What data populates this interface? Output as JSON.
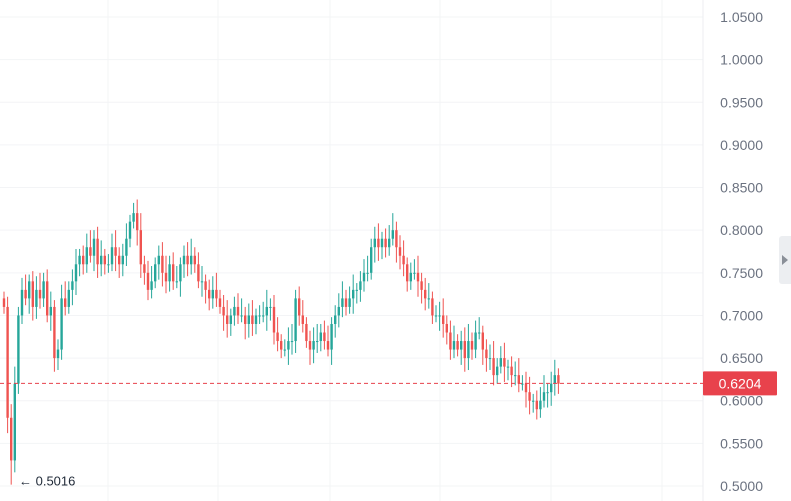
{
  "chart_data": {
    "type": "candlestick",
    "title": "",
    "xlabel": "",
    "ylabel": "",
    "ylim": [
      0.5,
      1.05
    ],
    "y_ticks": [
      "0.5000",
      "0.5500",
      "0.6000",
      "0.6500",
      "0.7000",
      "0.7500",
      "0.8000",
      "0.8500",
      "0.9000",
      "0.9500",
      "1.0000",
      "1.0500"
    ],
    "grid": true,
    "current_price": 0.6204,
    "current_price_label": "0.6204",
    "low_annotation": "← 0.5016",
    "low_value": 0.5016,
    "colors": {
      "up": "#26a69a",
      "down": "#ef5350",
      "price_tag": "#e8424c",
      "grid": "#f3f4f6",
      "axis_text": "#6b7280"
    },
    "close_path": [
      0.71,
      0.58,
      0.53,
      0.62,
      0.7,
      0.73,
      0.72,
      0.74,
      0.71,
      0.73,
      0.72,
      0.74,
      0.7,
      0.71,
      0.65,
      0.66,
      0.72,
      0.71,
      0.73,
      0.74,
      0.76,
      0.77,
      0.76,
      0.78,
      0.77,
      0.79,
      0.76,
      0.77,
      0.76,
      0.76,
      0.78,
      0.77,
      0.76,
      0.77,
      0.79,
      0.81,
      0.82,
      0.8,
      0.76,
      0.75,
      0.73,
      0.74,
      0.76,
      0.77,
      0.75,
      0.74,
      0.76,
      0.74,
      0.74,
      0.76,
      0.77,
      0.76,
      0.77,
      0.76,
      0.74,
      0.74,
      0.73,
      0.72,
      0.73,
      0.72,
      0.71,
      0.7,
      0.69,
      0.7,
      0.71,
      0.7,
      0.7,
      0.69,
      0.7,
      0.69,
      0.7,
      0.7,
      0.7,
      0.71,
      0.71,
      0.68,
      0.67,
      0.66,
      0.66,
      0.67,
      0.67,
      0.72,
      0.7,
      0.69,
      0.67,
      0.66,
      0.67,
      0.67,
      0.68,
      0.67,
      0.66,
      0.69,
      0.7,
      0.71,
      0.72,
      0.71,
      0.72,
      0.73,
      0.73,
      0.74,
      0.75,
      0.75,
      0.78,
      0.79,
      0.78,
      0.79,
      0.78,
      0.79,
      0.8,
      0.78,
      0.77,
      0.76,
      0.74,
      0.75,
      0.75,
      0.74,
      0.73,
      0.72,
      0.72,
      0.7,
      0.7,
      0.7,
      0.69,
      0.68,
      0.66,
      0.67,
      0.66,
      0.67,
      0.65,
      0.67,
      0.66,
      0.68,
      0.68,
      0.66,
      0.65,
      0.65,
      0.63,
      0.64,
      0.65,
      0.64,
      0.64,
      0.63,
      0.63,
      0.62,
      0.62,
      0.61,
      0.6,
      0.6,
      0.59,
      0.6,
      0.61,
      0.61,
      0.62,
      0.63,
      0.62
    ]
  }
}
